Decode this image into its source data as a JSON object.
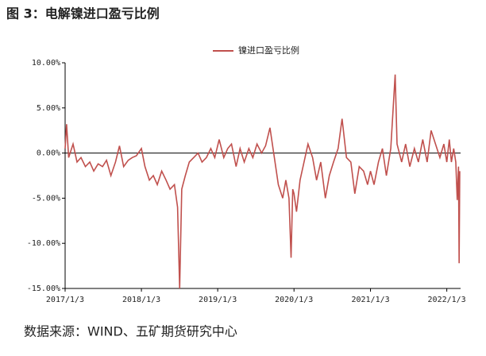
{
  "chart_data": {
    "type": "line",
    "title": "图 3：电解镍进口盈亏比例",
    "source": "数据来源：WIND、五矿期货研究中心",
    "x": [
      "2017/1/3",
      "2017/1/10",
      "2017/1/20",
      "2017/2/10",
      "2017/3/1",
      "2017/3/20",
      "2017/4/10",
      "2017/5/1",
      "2017/5/20",
      "2017/6/10",
      "2017/7/1",
      "2017/7/20",
      "2017/8/10",
      "2017/9/1",
      "2017/9/20",
      "2017/10/10",
      "2017/11/1",
      "2017/11/20",
      "2017/12/10",
      "2018/1/3",
      "2018/1/20",
      "2018/2/10",
      "2018/3/1",
      "2018/3/20",
      "2018/4/10",
      "2018/5/1",
      "2018/5/20",
      "2018/6/10",
      "2018/6/25",
      "2018/7/5",
      "2018/7/15",
      "2018/8/1",
      "2018/8/20",
      "2018/9/10",
      "2018/10/1",
      "2018/10/20",
      "2018/11/10",
      "2018/12/1",
      "2018/12/20",
      "2019/1/10",
      "2019/2/1",
      "2019/2/20",
      "2019/3/10",
      "2019/4/1",
      "2019/4/20",
      "2019/5/10",
      "2019/6/1",
      "2019/6/20",
      "2019/7/10",
      "2019/8/1",
      "2019/8/20",
      "2019/9/10",
      "2019/10/1",
      "2019/10/20",
      "2019/11/10",
      "2019/11/25",
      "2019/12/10",
      "2019/12/20",
      "2019/12/28",
      "2020/1/3",
      "2020/1/15",
      "2020/2/1",
      "2020/2/20",
      "2020/3/10",
      "2020/4/1",
      "2020/4/20",
      "2020/5/10",
      "2020/6/1",
      "2020/6/20",
      "2020/7/10",
      "2020/8/1",
      "2020/8/20",
      "2020/9/10",
      "2020/10/1",
      "2020/10/20",
      "2020/11/10",
      "2020/12/1",
      "2020/12/20",
      "2021/1/3",
      "2021/1/20",
      "2021/2/10",
      "2021/3/1",
      "2021/3/20",
      "2021/4/10",
      "2021/5/1",
      "2021/5/10",
      "2021/6/1",
      "2021/6/20",
      "2021/7/10",
      "2021/8/1",
      "2021/8/20",
      "2021/9/10",
      "2021/10/1",
      "2021/10/20",
      "2021/11/10",
      "2021/12/1",
      "2021/12/20",
      "2022/1/3",
      "2022/1/15",
      "2022/1/25",
      "2022/2/5",
      "2022/2/15",
      "2022/2/22",
      "2022/2/28",
      "2022/3/3",
      "2022/3/6"
    ],
    "series": [
      {
        "name": "镍进口盈亏比例",
        "color": "#c0504d",
        "values": [
          0.5,
          3.2,
          -0.5,
          1.0,
          -1.0,
          -0.5,
          -1.5,
          -1.0,
          -2.0,
          -1.2,
          -1.5,
          -0.8,
          -2.5,
          -1.0,
          0.8,
          -1.5,
          -0.8,
          -0.5,
          -0.3,
          0.5,
          -1.5,
          -3.0,
          -2.5,
          -3.5,
          -2.0,
          -3.0,
          -4.0,
          -3.5,
          -6.0,
          -15.0,
          -4.0,
          -2.5,
          -1.0,
          -0.5,
          0.0,
          -1.0,
          -0.5,
          0.5,
          -0.5,
          1.5,
          -0.5,
          0.5,
          1.0,
          -1.5,
          0.5,
          -1.0,
          0.5,
          -0.5,
          1.0,
          0.0,
          0.8,
          2.8,
          -0.5,
          -3.5,
          -5.0,
          -3.0,
          -5.0,
          -11.6,
          -4.0,
          -4.5,
          -6.5,
          -3.0,
          -1.0,
          1.0,
          -0.5,
          -3.0,
          -1.0,
          -5.0,
          -2.5,
          -1.0,
          0.5,
          3.8,
          -0.5,
          -1.0,
          -4.5,
          -1.5,
          -2.0,
          -3.5,
          -2.0,
          -3.5,
          -1.0,
          0.5,
          -2.5,
          0.5,
          8.7,
          1.0,
          -1.0,
          1.0,
          -1.5,
          0.5,
          -1.0,
          1.5,
          -1.0,
          2.5,
          1.0,
          -0.5,
          1.0,
          -1.0,
          1.5,
          -1.0,
          0.5,
          -1.0,
          -5.2,
          -1.5,
          -12.2,
          -2.0
        ]
      }
    ],
    "xlim": [
      "2017/1/3",
      "2022/3/10"
    ],
    "xticks": [
      "2017/1/3",
      "2018/1/3",
      "2019/1/3",
      "2020/1/3",
      "2021/1/3",
      "2022/1/3"
    ],
    "ylim": [
      -15,
      10
    ],
    "yticks": [
      {
        "value": -15,
        "label": "-15.00%"
      },
      {
        "value": -10,
        "label": "-10.00%"
      },
      {
        "value": -5,
        "label": "-5.00%"
      },
      {
        "value": 0,
        "label": "0.00%"
      },
      {
        "value": 5,
        "label": "5.00%"
      },
      {
        "value": 10,
        "label": "10.00%"
      }
    ],
    "legend": "top"
  }
}
